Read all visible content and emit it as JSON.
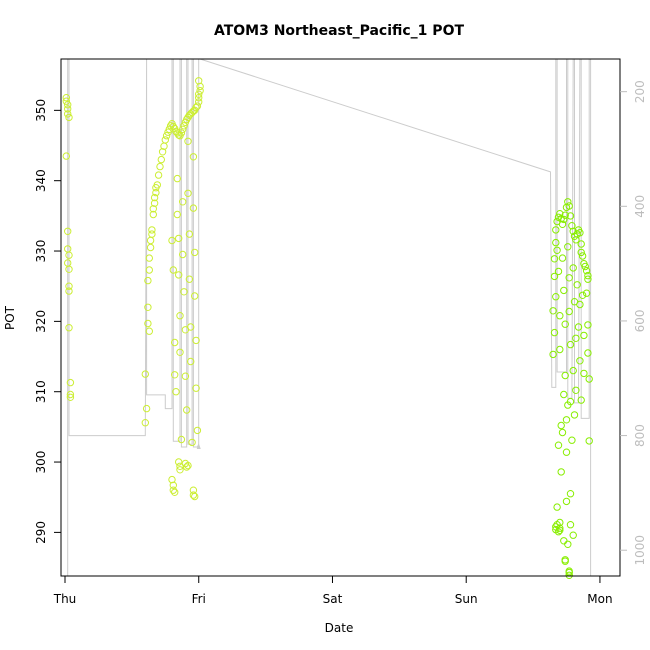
{
  "chart_data": {
    "type": "scatter",
    "title": "ATOM3 Northeast_Pacific_1 POT",
    "xlabel": "Date",
    "ylabel": "POT",
    "x_ticks": [
      "Thu",
      "Fri",
      "Sat",
      "Sun",
      "Mon"
    ],
    "xlim": [
      -0.03,
      4.15
    ],
    "ylim": [
      283.8,
      357.3
    ],
    "y_ticks": [
      290,
      300,
      310,
      320,
      330,
      340,
      350
    ],
    "right_axis": {
      "ylim": [
        1045,
        143
      ],
      "ticks": [
        200,
        400,
        600,
        800,
        1000
      ]
    },
    "grid": false,
    "legend": "none",
    "colors": {
      "early_points": "#ccee33",
      "late_points": "#88ee00",
      "trace_line": "#cccccc"
    },
    "series": [
      {
        "points": [
          [
            0.01,
            351.8
          ],
          [
            0.01,
            351.3
          ],
          [
            0.02,
            350.8
          ],
          [
            0.02,
            350.2
          ],
          [
            0.02,
            349.5
          ],
          [
            0.03,
            349
          ],
          [
            0.01,
            343.5
          ],
          [
            0.02,
            332.8
          ],
          [
            0.02,
            330.3
          ],
          [
            0.03,
            329.4
          ],
          [
            0.02,
            328.3
          ],
          [
            0.03,
            327.4
          ],
          [
            0.03,
            325
          ],
          [
            0.03,
            324.3
          ],
          [
            0.03,
            319.1
          ],
          [
            0.04,
            311.3
          ],
          [
            0.04,
            309.6
          ],
          [
            0.04,
            309.2
          ],
          [
            0.6,
            312.5
          ],
          [
            0.61,
            307.6
          ],
          [
            0.6,
            305.6
          ],
          [
            0.62,
            322
          ],
          [
            0.62,
            319.7
          ],
          [
            0.63,
            318.6
          ],
          [
            0.62,
            325.8
          ],
          [
            0.63,
            327.3
          ],
          [
            0.63,
            329
          ],
          [
            0.64,
            330.5
          ],
          [
            0.64,
            331.5
          ],
          [
            0.65,
            332.4
          ],
          [
            0.65,
            333
          ],
          [
            0.66,
            335.2
          ],
          [
            0.66,
            336
          ],
          [
            0.67,
            336.8
          ],
          [
            0.67,
            337.6
          ],
          [
            0.68,
            338.3
          ],
          [
            0.68,
            339
          ],
          [
            0.69,
            339.4
          ],
          [
            0.7,
            340.8
          ],
          [
            0.71,
            342
          ],
          [
            0.72,
            343
          ],
          [
            0.73,
            344.1
          ],
          [
            0.74,
            344.9
          ],
          [
            0.75,
            345.8
          ],
          [
            0.76,
            346.4
          ],
          [
            0.77,
            346.9
          ],
          [
            0.78,
            347.3
          ],
          [
            0.79,
            347.8
          ],
          [
            0.8,
            348.1
          ],
          [
            0.81,
            347.7
          ],
          [
            0.82,
            347.4
          ],
          [
            0.83,
            347
          ],
          [
            0.84,
            346.8
          ],
          [
            0.85,
            346.5
          ],
          [
            0.86,
            346.4
          ],
          [
            0.87,
            346.8
          ],
          [
            0.88,
            347.3
          ],
          [
            0.89,
            347.8
          ],
          [
            0.9,
            348.3
          ],
          [
            0.91,
            348.7
          ],
          [
            0.92,
            349
          ],
          [
            0.93,
            349.3
          ],
          [
            0.94,
            349.5
          ],
          [
            0.95,
            349.7
          ],
          [
            0.96,
            349.9
          ],
          [
            0.97,
            350
          ],
          [
            0.98,
            350.4
          ],
          [
            0.99,
            350.6
          ],
          [
            1.0,
            351.2
          ],
          [
            1.0,
            351.8
          ],
          [
            1.0,
            352.3
          ],
          [
            1.01,
            352.8
          ],
          [
            1.01,
            353.4
          ],
          [
            1.0,
            354.2
          ],
          [
            0.8,
            331.5
          ],
          [
            0.81,
            327.3
          ],
          [
            0.82,
            317
          ],
          [
            0.82,
            312.4
          ],
          [
            0.83,
            310
          ],
          [
            0.84,
            340.3
          ],
          [
            0.84,
            335.2
          ],
          [
            0.85,
            331.8
          ],
          [
            0.85,
            326.6
          ],
          [
            0.86,
            320.8
          ],
          [
            0.86,
            315.6
          ],
          [
            0.87,
            303.2
          ],
          [
            0.88,
            337
          ],
          [
            0.88,
            329.5
          ],
          [
            0.89,
            324.2
          ],
          [
            0.9,
            318.8
          ],
          [
            0.9,
            312.2
          ],
          [
            0.91,
            307.4
          ],
          [
            0.92,
            345.6
          ],
          [
            0.92,
            338.2
          ],
          [
            0.93,
            332.4
          ],
          [
            0.93,
            326
          ],
          [
            0.94,
            319.2
          ],
          [
            0.94,
            314.3
          ],
          [
            0.95,
            302.8
          ],
          [
            0.96,
            343.4
          ],
          [
            0.96,
            336.1
          ],
          [
            0.97,
            329.8
          ],
          [
            0.97,
            323.6
          ],
          [
            0.98,
            317.3
          ],
          [
            0.98,
            310.5
          ],
          [
            0.99,
            304.5
          ],
          [
            0.8,
            297.5
          ],
          [
            0.81,
            296.7
          ],
          [
            0.81,
            296
          ],
          [
            0.82,
            295.7
          ],
          [
            0.85,
            300
          ],
          [
            0.86,
            299.4
          ],
          [
            0.86,
            298.9
          ],
          [
            0.9,
            299.8
          ],
          [
            0.91,
            299.3
          ],
          [
            0.92,
            299.5
          ],
          [
            0.96,
            296
          ],
          [
            0.96,
            295.3
          ],
          [
            0.97,
            295.1
          ]
        ]
      },
      {
        "points": [
          [
            3.65,
            315.3
          ],
          [
            3.65,
            321.5
          ],
          [
            3.66,
            326.4
          ],
          [
            3.66,
            328.9
          ],
          [
            3.67,
            331.2
          ],
          [
            3.67,
            333
          ],
          [
            3.68,
            334.2
          ],
          [
            3.69,
            334.8
          ],
          [
            3.7,
            335.3
          ],
          [
            3.71,
            334.6
          ],
          [
            3.72,
            333.8
          ],
          [
            3.73,
            334.5
          ],
          [
            3.74,
            335.1
          ],
          [
            3.75,
            336.2
          ],
          [
            3.76,
            337
          ],
          [
            3.77,
            336.4
          ],
          [
            3.78,
            335
          ],
          [
            3.79,
            333.6
          ],
          [
            3.8,
            332.8
          ],
          [
            3.81,
            332.1
          ],
          [
            3.82,
            331.6
          ],
          [
            3.83,
            332.4
          ],
          [
            3.84,
            333
          ],
          [
            3.85,
            332.6
          ],
          [
            3.86,
            331
          ],
          [
            3.87,
            329.3
          ],
          [
            3.88,
            328.2
          ],
          [
            3.89,
            327.8
          ],
          [
            3.9,
            327.2
          ],
          [
            3.91,
            326.5
          ],
          [
            3.91,
            326
          ],
          [
            3.9,
            324
          ],
          [
            3.91,
            319.5
          ],
          [
            3.91,
            315.5
          ],
          [
            3.92,
            311.8
          ],
          [
            3.92,
            303
          ],
          [
            3.66,
            318.4
          ],
          [
            3.67,
            323.5
          ],
          [
            3.68,
            330.1
          ],
          [
            3.69,
            327.1
          ],
          [
            3.7,
            320.8
          ],
          [
            3.7,
            316
          ],
          [
            3.71,
            305.2
          ],
          [
            3.71,
            298.6
          ],
          [
            3.72,
            304.2
          ],
          [
            3.72,
            329
          ],
          [
            3.73,
            324.4
          ],
          [
            3.74,
            319.6
          ],
          [
            3.74,
            312.3
          ],
          [
            3.75,
            306
          ],
          [
            3.75,
            301.4
          ],
          [
            3.76,
            308.1
          ],
          [
            3.76,
            330.6
          ],
          [
            3.77,
            326.2
          ],
          [
            3.77,
            321.4
          ],
          [
            3.78,
            316.7
          ],
          [
            3.78,
            308.6
          ],
          [
            3.79,
            303.1
          ],
          [
            3.8,
            313
          ],
          [
            3.8,
            327.6
          ],
          [
            3.81,
            322.8
          ],
          [
            3.82,
            317.6
          ],
          [
            3.82,
            310.2
          ],
          [
            3.83,
            325.2
          ],
          [
            3.84,
            319.2
          ],
          [
            3.85,
            314.4
          ],
          [
            3.86,
            308.8
          ],
          [
            3.86,
            329.8
          ],
          [
            3.87,
            323.7
          ],
          [
            3.88,
            318
          ],
          [
            3.88,
            312.6
          ],
          [
            3.69,
            302.4
          ],
          [
            3.73,
            309.6
          ],
          [
            3.81,
            306.7
          ],
          [
            3.85,
            322.4
          ],
          [
            3.67,
            290.8
          ],
          [
            3.67,
            290.4
          ],
          [
            3.68,
            293.6
          ],
          [
            3.68,
            291.1
          ],
          [
            3.69,
            290.1
          ],
          [
            3.7,
            291.4
          ],
          [
            3.7,
            290.6
          ],
          [
            3.7,
            290.3
          ],
          [
            3.73,
            288.8
          ],
          [
            3.74,
            286.1
          ],
          [
            3.74,
            285.9
          ],
          [
            3.75,
            294.4
          ],
          [
            3.76,
            288.3
          ],
          [
            3.77,
            284.5
          ],
          [
            3.77,
            283.9
          ],
          [
            3.77,
            284.3
          ],
          [
            3.78,
            295.5
          ],
          [
            3.78,
            291.1
          ],
          [
            3.8,
            289.6
          ]
        ]
      }
    ]
  }
}
